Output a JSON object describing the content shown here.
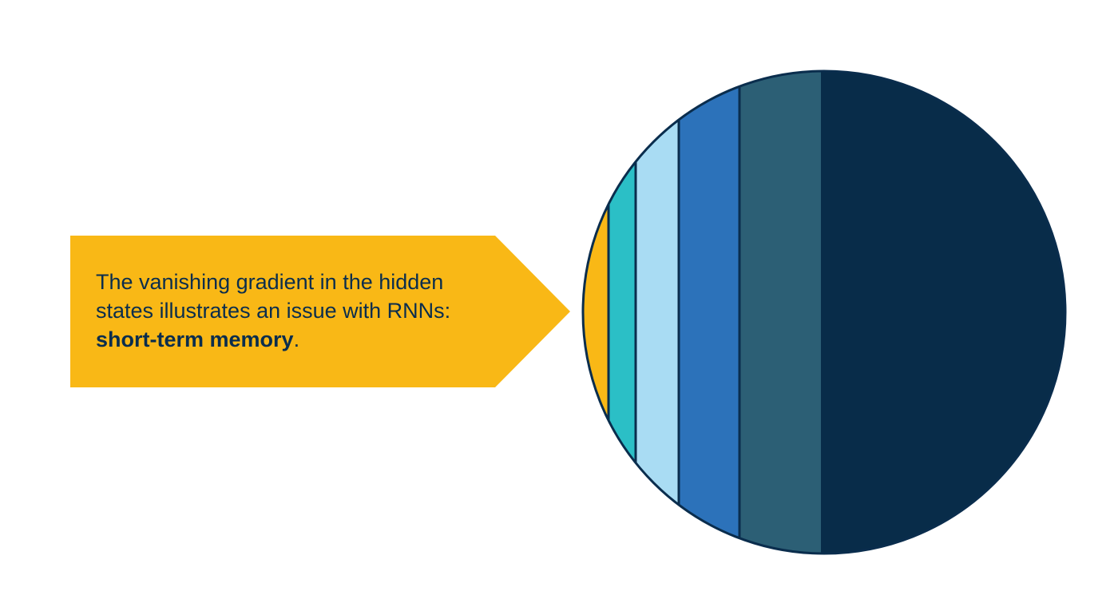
{
  "callout": {
    "text_before": "The vanishing gradient in the hidden states illustrates an issue with RNNs: ",
    "text_bold": "short-term memory",
    "text_after": ".",
    "fill_color": "#f9b816",
    "text_color": "#0a2d4d"
  },
  "circle": {
    "outline_color": "#0a2d4d",
    "band_colors": [
      "#f9b816",
      "#2bbfc6",
      "#a9dcf3",
      "#2c72ba",
      "#2c5f75",
      "#082c49"
    ]
  }
}
